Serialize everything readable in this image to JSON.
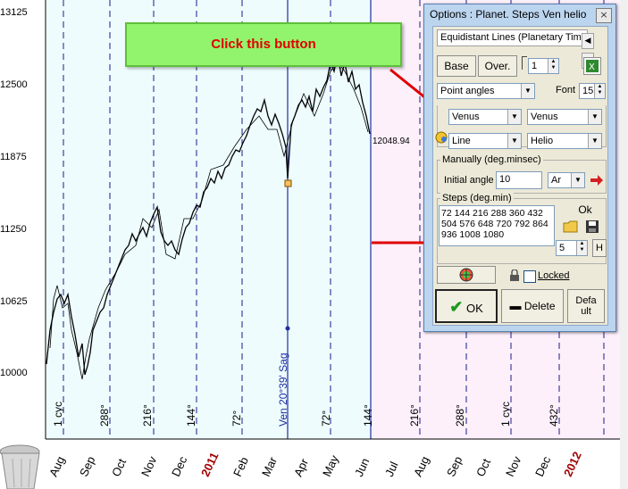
{
  "price_axis": {
    "labels": [
      "13125",
      "12500",
      "11875",
      "11250",
      "10625",
      "10000"
    ],
    "last_price": "12048.94"
  },
  "month_axis": {
    "labels": [
      "Aug",
      "Sep",
      "Oct",
      "Nov",
      "Dec",
      "2011",
      "Feb",
      "Mar",
      "Apr",
      "May",
      "Jun",
      "Jul",
      "Aug",
      "Sep",
      "Oct",
      "Nov",
      "Dec",
      "2012"
    ]
  },
  "angle_lines": {
    "labels": [
      "1 cyc",
      "288°",
      "216°",
      "144°",
      "72°",
      "72°",
      "144°",
      "216°",
      "288°",
      "1 cyc",
      "432°"
    ],
    "venus_label": "Ven 20°39' Sag"
  },
  "callout": {
    "text": "Click this button"
  },
  "dialog": {
    "title": "Options : Planet. Steps  Ven helio",
    "close": "×",
    "tab": "Equidistant Lines (Planetary Time)",
    "base_button": "Base",
    "over_button": "Over.",
    "count_value": "1",
    "angle_mode": "Point angles",
    "font_label": "Font",
    "font_size": "15",
    "planet1": "Venus",
    "planet2": "Venus",
    "line_style": "Line",
    "coord": "Helio",
    "manual_group": "Manually (deg.minsec)",
    "initial_angle_label": "Initial angle",
    "initial_angle_value": "10",
    "sign_value": "Ar",
    "steps_group": "Steps (deg.min)",
    "steps_text": "72 144 216 288 360 432\n504 576 648 720 792 864\n936 1008 1080",
    "ok_small": "Ok",
    "steps_count": "5",
    "h_button": "H",
    "locked_label": "Locked",
    "ok_button": "OK",
    "delete_button": "Delete",
    "default_button": "Defa\nult"
  },
  "colors": {
    "accent_red": "#e00000",
    "callout_green": "#92f36c",
    "line_blue": "#1f2fa0"
  }
}
